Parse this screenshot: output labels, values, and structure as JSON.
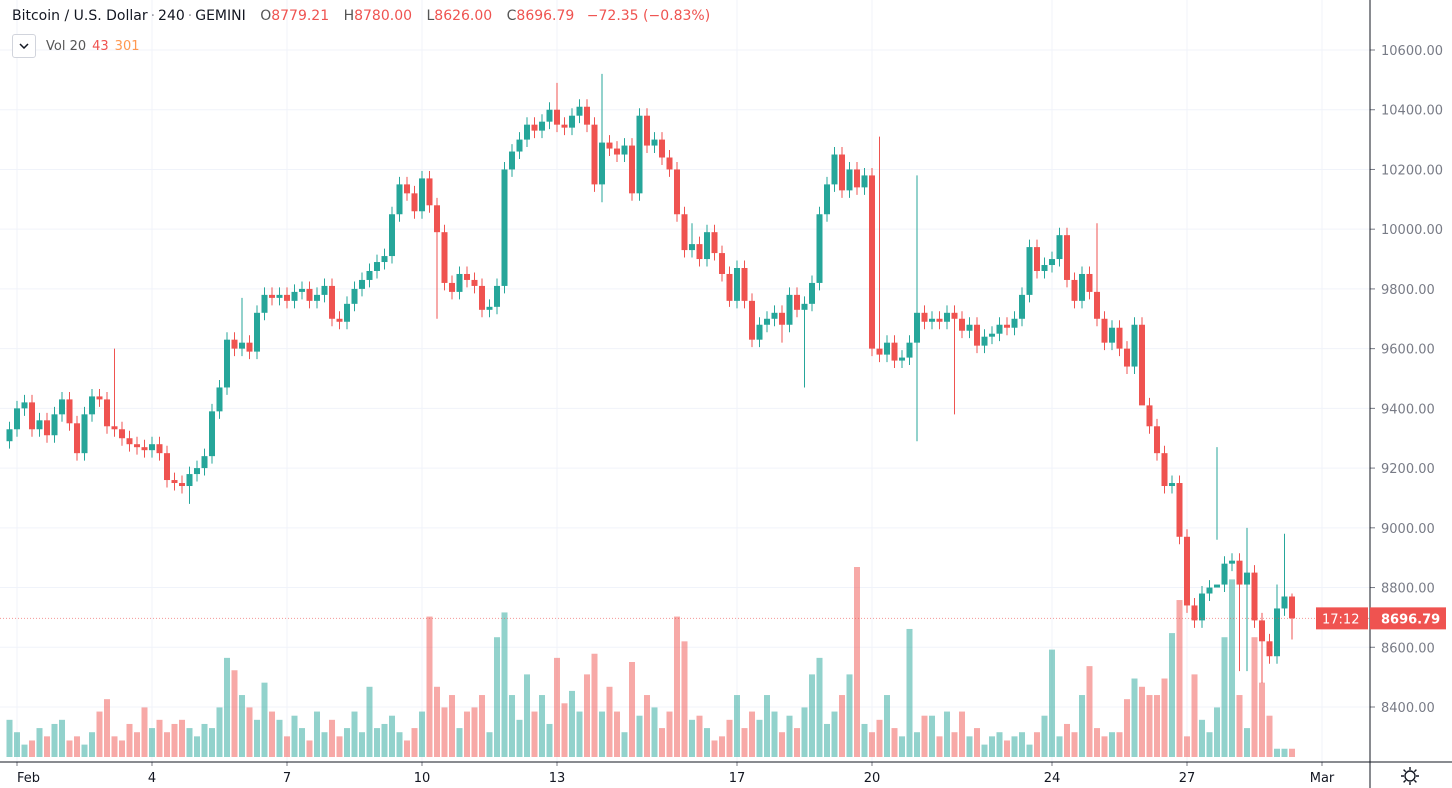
{
  "header": {
    "symbol": "Bitcoin / U.S. Dollar",
    "interval": "240",
    "exchange": "GEMINI",
    "o_label": "O",
    "o": "8779.21",
    "h_label": "H",
    "h": "8780.00",
    "l_label": "L",
    "l": "8626.00",
    "c_label": "C",
    "c": "8696.79",
    "change": "−72.35 (−0.83%)"
  },
  "volume_legend": {
    "label": "Vol 20",
    "value1": "43",
    "value2": "301"
  },
  "price_label": "8696.79",
  "countdown": "17:12",
  "colors": {
    "up": "#26a69a",
    "down": "#ef5350",
    "grid": "#f0f3fa",
    "axis": "#787b86"
  },
  "chart_data": {
    "type": "candlestick",
    "title": "Bitcoin / U.S. Dollar · 240 · GEMINI",
    "ylim": [
      8250,
      10680
    ],
    "y_ticks": [
      "10600.00",
      "10400.00",
      "10200.00",
      "10000.00",
      "9800.00",
      "9600.00",
      "9400.00",
      "9200.00",
      "9000.00",
      "8800.00",
      "8600.00",
      "8400.00"
    ],
    "x_ticks": [
      {
        "label": "Feb",
        "day": 1
      },
      {
        "label": "4",
        "day": 4
      },
      {
        "label": "7",
        "day": 7
      },
      {
        "label": "10",
        "day": 10
      },
      {
        "label": "13",
        "day": 13
      },
      {
        "label": "17",
        "day": 17
      },
      {
        "label": "20",
        "day": 20
      },
      {
        "label": "24",
        "day": 24
      },
      {
        "label": "27",
        "day": 27
      },
      {
        "label": "Mar",
        "day": 30
      }
    ],
    "candles_per_day": 6,
    "first_open": 9290,
    "default_wick": 25,
    "closes": [
      9330,
      9400,
      9420,
      9330,
      9360,
      9310,
      9380,
      9430,
      9350,
      9250,
      9380,
      9440,
      9430,
      9340,
      9330,
      9300,
      9280,
      9270,
      9260,
      9280,
      9250,
      9160,
      9150,
      9140,
      9180,
      9200,
      9240,
      9390,
      9470,
      9630,
      9600,
      9620,
      9590,
      9720,
      9780,
      9770,
      9780,
      9760,
      9790,
      9800,
      9760,
      9780,
      9810,
      9700,
      9690,
      9750,
      9800,
      9830,
      9860,
      9890,
      9910,
      10050,
      10150,
      10120,
      10060,
      10170,
      10080,
      9990,
      9820,
      9790,
      9850,
      9830,
      9810,
      9730,
      9740,
      9810,
      10200,
      10260,
      10300,
      10350,
      10330,
      10360,
      10400,
      10350,
      10340,
      10380,
      10410,
      10350,
      10150,
      10290,
      10270,
      10250,
      10280,
      10120,
      10380,
      10280,
      10300,
      10240,
      10200,
      10050,
      9930,
      9950,
      9900,
      9990,
      9920,
      9850,
      9760,
      9870,
      9760,
      9630,
      9680,
      9700,
      9720,
      9680,
      9780,
      9730,
      9750,
      9820,
      10050,
      10150,
      10250,
      10130,
      10200,
      10140,
      10180,
      9600,
      9580,
      9620,
      9560,
      9570,
      9620,
      9720,
      9690,
      9700,
      9690,
      9720,
      9700,
      9660,
      9680,
      9610,
      9640,
      9650,
      9680,
      9670,
      9700,
      9780,
      9940,
      9860,
      9880,
      9900,
      9980,
      9830,
      9760,
      9850,
      9790,
      9700,
      9620,
      9670,
      9600,
      9540,
      9680,
      9410,
      9340,
      9250,
      9140,
      9150,
      8970,
      8740,
      8690,
      8780,
      8800,
      8810,
      8880,
      8890,
      8810,
      8850,
      8690,
      8620,
      8570,
      8730,
      8770,
      8696.79
    ],
    "wick_overrides": {
      "14": {
        "h": 9600
      },
      "24": {
        "l": 9080
      },
      "31": {
        "h": 9770
      },
      "57": {
        "l": 9700
      },
      "73": {
        "h": 10490
      },
      "79": {
        "h": 10520,
        "l": 10090
      },
      "91": {
        "h": 10020
      },
      "96": {
        "l": 9740
      },
      "103": {
        "l": 9620
      },
      "106": {
        "l": 9470
      },
      "116": {
        "h": 10310
      },
      "121": {
        "h": 10180,
        "l": 9290
      },
      "126": {
        "l": 9380
      },
      "145": {
        "h": 10020
      },
      "151": {
        "l": 9580
      },
      "161": {
        "h": 9270,
        "l": 8960
      },
      "164": {
        "l": 8520
      },
      "165": {
        "h": 9000,
        "l": 8520
      },
      "170": {
        "h": 8980
      },
      "167": {
        "l": 8480
      },
      "169": {
        "h": 8810
      },
      "171": {
        "h": 8780,
        "l": 8626
      }
    },
    "volume": [
      18,
      12,
      6,
      8,
      14,
      10,
      16,
      18,
      8,
      10,
      6,
      12,
      22,
      28,
      10,
      8,
      16,
      12,
      24,
      14,
      18,
      12,
      16,
      18,
      14,
      10,
      16,
      14,
      24,
      48,
      42,
      30,
      24,
      18,
      36,
      22,
      18,
      10,
      20,
      14,
      8,
      22,
      12,
      18,
      10,
      14,
      22,
      12,
      34,
      14,
      16,
      20,
      12,
      8,
      14,
      22,
      68,
      34,
      24,
      30,
      14,
      22,
      24,
      30,
      12,
      58,
      70,
      30,
      18,
      40,
      22,
      30,
      16,
      48,
      26,
      32,
      22,
      40,
      50,
      22,
      34,
      22,
      12,
      46,
      20,
      30,
      24,
      14,
      22,
      68,
      56,
      18,
      20,
      14,
      8,
      10,
      18,
      30,
      14,
      22,
      18,
      30,
      22,
      12,
      20,
      14,
      24,
      40,
      48,
      16,
      22,
      30,
      40,
      92,
      16,
      12,
      18,
      30,
      14,
      10,
      62,
      12,
      20,
      20,
      10,
      22,
      12,
      22,
      10,
      14,
      6,
      10,
      12,
      8,
      10,
      12,
      6,
      12,
      20,
      52,
      10,
      16,
      12,
      30,
      44,
      14,
      10,
      12,
      12,
      28,
      38,
      34,
      30,
      30,
      38,
      60,
      76,
      10,
      40,
      18,
      12,
      24,
      58,
      86,
      30,
      14,
      58,
      36,
      20,
      4,
      4,
      4
    ]
  }
}
